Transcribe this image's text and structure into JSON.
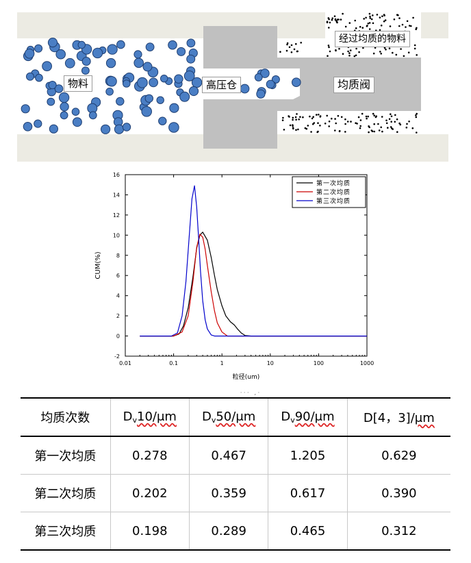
{
  "diagram": {
    "labels": {
      "material": "物料",
      "high_pressure": "高压仓",
      "valve": "均质阀",
      "homogenized": "经过均质的物料"
    },
    "colors": {
      "pipe": "#ecebe3",
      "block": "#c0c0c0",
      "particle": "#4a7ec4",
      "particle_edge": "#1f3f72",
      "fine": "#000000"
    }
  },
  "chart_data": {
    "type": "line",
    "xlabel": "粒径(um)",
    "ylabel": "CUM(%)",
    "xscale": "log",
    "xlim": [
      0.01,
      1000
    ],
    "ylim": [
      -2,
      16
    ],
    "xticks": [
      "0.01",
      "0.1",
      "1",
      "10",
      "100",
      "1000"
    ],
    "yticks": [
      "-2",
      "0",
      "2",
      "4",
      "6",
      "8",
      "10",
      "12",
      "14",
      "16"
    ],
    "legend_position": "top-right",
    "series": [
      {
        "name": "第一次均质",
        "color": "#000000",
        "x": [
          0.02,
          0.1,
          0.13,
          0.16,
          0.2,
          0.25,
          0.3,
          0.35,
          0.4,
          0.5,
          0.6,
          0.7,
          0.8,
          1.0,
          1.2,
          1.5,
          1.8,
          2.1,
          2.5,
          3.0,
          4.0,
          1000
        ],
        "y": [
          0,
          0,
          0.2,
          1.0,
          2.8,
          5.8,
          8.7,
          10.0,
          10.3,
          9.5,
          7.8,
          6.0,
          4.6,
          3.0,
          2.0,
          1.4,
          1.1,
          0.7,
          0.3,
          0.05,
          0,
          0
        ]
      },
      {
        "name": "第二次均质",
        "color": "#cc0000",
        "x": [
          0.02,
          0.1,
          0.15,
          0.2,
          0.25,
          0.3,
          0.35,
          0.4,
          0.45,
          0.5,
          0.6,
          0.7,
          0.8,
          1.0,
          1.3,
          1000
        ],
        "y": [
          0,
          0,
          0.4,
          2.0,
          5.3,
          8.8,
          10.1,
          9.8,
          8.6,
          7.0,
          4.4,
          2.5,
          1.3,
          0.4,
          0,
          0
        ]
      },
      {
        "name": "第三次均质",
        "color": "#0000cc",
        "x": [
          0.02,
          0.09,
          0.12,
          0.15,
          0.18,
          0.21,
          0.24,
          0.27,
          0.3,
          0.33,
          0.36,
          0.4,
          0.45,
          0.5,
          0.6,
          0.7,
          1000
        ],
        "y": [
          0,
          0,
          0.3,
          2.0,
          5.4,
          9.8,
          13.6,
          14.9,
          12.8,
          9.6,
          6.4,
          3.5,
          1.6,
          0.7,
          0.1,
          0,
          0
        ]
      }
    ]
  },
  "caption_fragment": "· · ·　, ·",
  "table": {
    "header": {
      "col0": "均质次数",
      "col1_base": "D",
      "col1_sub": "v",
      "col1_unit": "10/μm",
      "col2_base": "D",
      "col2_sub": "v",
      "col2_unit": "50/μm",
      "col3_base": "D",
      "col3_sub": "v",
      "col3_unit": "90/μm",
      "col4_main": "D[4，3]/",
      "col4_unit": "μm"
    },
    "rows": [
      [
        "第一次均质",
        "0.278",
        "0.467",
        "1.205",
        "0.629"
      ],
      [
        "第二次均质",
        "0.202",
        "0.359",
        "0.617",
        "0.390"
      ],
      [
        "第三次均质",
        "0.198",
        "0.289",
        "0.465",
        "0.312"
      ]
    ]
  }
}
